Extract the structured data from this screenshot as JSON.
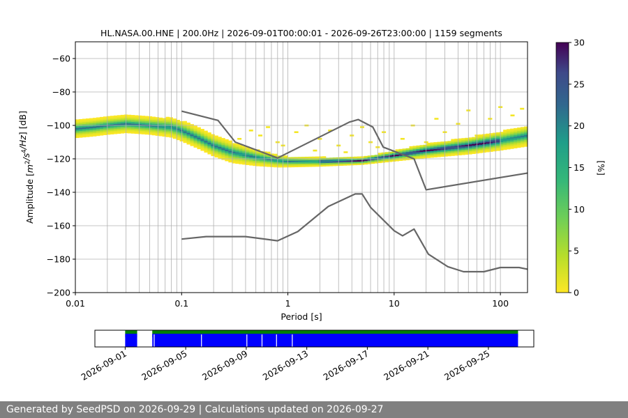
{
  "chart_data": [
    {
      "type": "heatmap",
      "title": "HL.NASA.00.HNE | 200.0Hz | 2026-09-01T00:00:01 - 2026-09-26T23:00:00 | 1159 segments",
      "xlabel": "Period [s]",
      "ylabel_parts": [
        "Amplitude [",
        "m",
        "2",
        "/",
        "s",
        "4",
        "/",
        "Hz",
        "] [dB]"
      ],
      "x_scale": "log",
      "xlim": [
        0.01,
        180
      ],
      "ylim": [
        -200,
        -50
      ],
      "x_ticks": [
        {
          "value": 0.01,
          "label": "0.01"
        },
        {
          "value": 0.1,
          "label": "0.1"
        },
        {
          "value": 1,
          "label": "1"
        },
        {
          "value": 10,
          "label": "10"
        },
        {
          "value": 100,
          "label": "100"
        }
      ],
      "y_ticks": [
        {
          "value": -60,
          "label": "−60"
        },
        {
          "value": -80,
          "label": "−80"
        },
        {
          "value": -100,
          "label": "−100"
        },
        {
          "value": -120,
          "label": "−120"
        },
        {
          "value": -140,
          "label": "−140"
        },
        {
          "value": -160,
          "label": "−160"
        },
        {
          "value": -180,
          "label": "−180"
        },
        {
          "value": -200,
          "label": "−200"
        }
      ],
      "grid": true,
      "colormap": "viridis_r",
      "colorbar": {
        "label": "[%]",
        "range": [
          0,
          30
        ],
        "ticks": [
          {
            "value": 0,
            "label": "0"
          },
          {
            "value": 5,
            "label": "5"
          },
          {
            "value": 10,
            "label": "10"
          },
          {
            "value": 15,
            "label": "15"
          },
          {
            "value": 20,
            "label": "20"
          },
          {
            "value": 25,
            "label": "25"
          },
          {
            "value": 30,
            "label": "30"
          }
        ]
      },
      "mode_curve": [
        [
          0.01,
          -102
        ],
        [
          0.015,
          -101
        ],
        [
          0.02,
          -100
        ],
        [
          0.03,
          -99
        ],
        [
          0.05,
          -100
        ],
        [
          0.08,
          -101
        ],
        [
          0.1,
          -103
        ],
        [
          0.15,
          -108
        ],
        [
          0.2,
          -112
        ],
        [
          0.3,
          -116
        ],
        [
          0.5,
          -119
        ],
        [
          0.8,
          -121
        ],
        [
          1,
          -121.5
        ],
        [
          2,
          -121.5
        ],
        [
          5,
          -121
        ],
        [
          10,
          -118
        ],
        [
          20,
          -115
        ],
        [
          50,
          -112
        ],
        [
          100,
          -109
        ],
        [
          180,
          -106
        ]
      ],
      "band_width_db": [
        [
          0.01,
          5
        ],
        [
          0.05,
          5
        ],
        [
          0.1,
          6
        ],
        [
          0.3,
          6
        ],
        [
          1,
          3
        ],
        [
          5,
          2
        ],
        [
          20,
          4
        ],
        [
          180,
          6
        ]
      ],
      "noise_scatter": [
        [
          0.35,
          -108
        ],
        [
          0.45,
          -103
        ],
        [
          0.55,
          -106
        ],
        [
          0.65,
          -101
        ],
        [
          0.8,
          -110
        ],
        [
          1.2,
          -104
        ],
        [
          1.5,
          -100
        ],
        [
          2,
          -108
        ],
        [
          2.5,
          -103
        ],
        [
          3,
          -112
        ],
        [
          4,
          -106
        ],
        [
          5,
          -101
        ],
        [
          6,
          -110
        ],
        [
          8,
          -104
        ],
        [
          12,
          -108
        ],
        [
          15,
          -100
        ],
        [
          20,
          -110
        ],
        [
          25,
          -96
        ],
        [
          30,
          -104
        ],
        [
          40,
          -99
        ],
        [
          50,
          -91
        ],
        [
          60,
          -106
        ],
        [
          80,
          -96
        ],
        [
          100,
          -89
        ],
        [
          130,
          -94
        ],
        [
          160,
          -90
        ],
        [
          0.9,
          -112
        ],
        [
          1.8,
          -115
        ],
        [
          3.5,
          -116
        ],
        [
          7,
          -113
        ]
      ],
      "reference_curves": [
        {
          "points": [
            [
              0.1,
              -91.5
            ],
            [
              0.22,
              -97
            ],
            [
              0.32,
              -110
            ],
            [
              0.8,
              -119.5
            ],
            [
              3.8,
              -98
            ],
            [
              4.6,
              -96.5
            ],
            [
              6.3,
              -101
            ],
            [
              7.9,
              -113
            ],
            [
              15.4,
              -120
            ],
            [
              20,
              -138.5
            ],
            [
              180,
              -128.5
            ]
          ]
        },
        {
          "points": [
            [
              0.1,
              -168
            ],
            [
              0.17,
              -166.5
            ],
            [
              0.4,
              -166.5
            ],
            [
              0.8,
              -169
            ],
            [
              1.24,
              -163.5
            ],
            [
              2.4,
              -148.5
            ],
            [
              4.3,
              -141
            ],
            [
              5.0,
              -141
            ],
            [
              6.0,
              -149
            ],
            [
              10,
              -163
            ],
            [
              12,
              -166
            ],
            [
              15.4,
              -162
            ],
            [
              21,
              -177
            ],
            [
              32,
              -184.5
            ],
            [
              45,
              -187.5
            ],
            [
              70,
              -187.5
            ],
            [
              100,
              -185
            ],
            [
              150,
              -185
            ],
            [
              180,
              -186
            ]
          ]
        }
      ]
    },
    {
      "type": "timeline",
      "xlim": [
        "2026-08-30",
        "2026-09-28"
      ],
      "x_ticks": [
        "2026-09-01",
        "2026-09-05",
        "2026-09-09",
        "2026-09-13",
        "2026-09-17",
        "2026-09-21",
        "2026-09-25"
      ],
      "rows": [
        {
          "color": "#008000",
          "intervals": [
            [
              "2026-09-01T00:00:01",
              "2026-09-01T19:00:00"
            ],
            [
              "2026-09-02T19:00:00",
              "2026-09-26T23:00:00"
            ]
          ]
        },
        {
          "color": "#0000ff",
          "intervals": [
            [
              "2026-09-01T00:00:01",
              "2026-09-01T19:00:00"
            ],
            [
              "2026-09-02T19:00:00",
              "2026-09-26T23:00:00"
            ]
          ],
          "gap_markers": [
            "2026-09-02T22:00:00",
            "2026-09-06T01:00:00",
            "2026-09-09T01:00:00",
            "2026-09-10T01:00:00",
            "2026-09-11T00:00:00",
            "2026-09-12T01:00:00"
          ]
        }
      ]
    }
  ],
  "footer": "Generated by SeedPSD on 2026-09-29 | Calculations updated on 2026-09-27"
}
